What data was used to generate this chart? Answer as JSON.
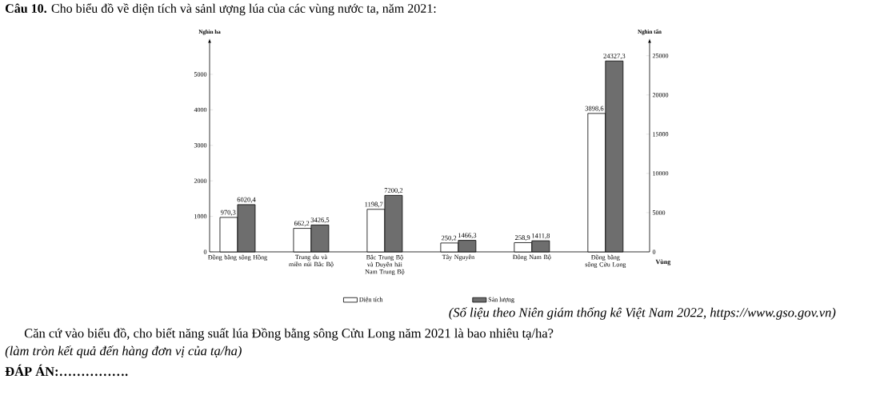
{
  "chart_data": {
    "type": "bar",
    "title": "**Câu 10.** Cho biểu đồ về diện tích và sảnl ượng lúa của các vùng nước ta, năm 2021:",
    "categories": [
      "Đồng bằng sông Hồng",
      "Trung du và miền núi Bắc Bộ",
      "Bắc Trung Bộ và Duyên hải Nam Trung Bộ",
      "Tây Nguyên",
      "Đông Nam Bộ",
      "Đồng bằng sông Cửu Long"
    ],
    "series": [
      {
        "name": "Diện tích",
        "color": "#ffffff",
        "axis": "y",
        "values": [
          970.3,
          662.2,
          1198.7,
          250.2,
          258.9,
          3898.6
        ],
        "value_labels": [
          "970,3",
          "662,2",
          "1198,7",
          "250,2",
          "258,9",
          "3898,6"
        ]
      },
      {
        "name": "Sản lượng",
        "color": "#6e6e6e",
        "axis": "y2",
        "values": [
          6020.4,
          3426.5,
          7200.2,
          1466.3,
          1411.8,
          24327.3
        ],
        "value_labels": [
          "6020,4",
          "3426,5",
          "7200,2",
          "1466,3",
          "1411,8",
          "24327,3"
        ]
      }
    ],
    "xlabel": "Vùng",
    "ylabel": "Nghìn ha",
    "y2label": "Nghìn tấn",
    "ylim": [
      0,
      5900
    ],
    "yticks": [
      0,
      1000,
      2000,
      3000,
      4000,
      5000
    ],
    "y2lim": [
      0,
      26700
    ],
    "y2ticks": [
      0,
      5000,
      10000,
      15000,
      20000,
      25000
    ],
    "legend": "bottom",
    "grid": false,
    "annotations": [
      "(Số liệu theo Niên giám thống kê Việt Nam 2022, https://www.gso.gov.vn)",
      "Căn cứ vào biểu đồ, cho biết năng suất lúa Đồng bằng sông Cửu Long năm 2021 là bao nhiêu tạ/ha?",
      "(làm tròn kết quả đến hàng đơn vị của tạ/ha)",
      "ĐÁP ÁN:……………."
    ]
  }
}
